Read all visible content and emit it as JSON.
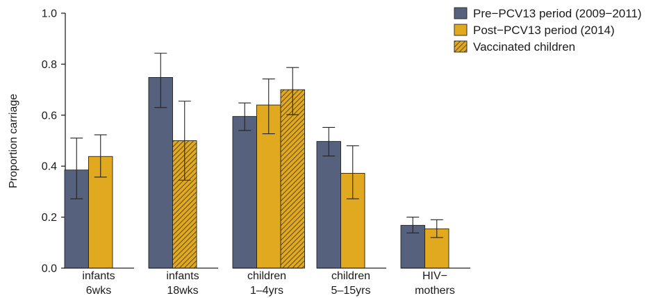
{
  "chart_data": {
    "type": "bar",
    "title": "",
    "xlabel": "",
    "ylabel": "Proportion carriage",
    "ylim": [
      0,
      1.0
    ],
    "yticks": [
      "0.0",
      "0.2",
      "0.4",
      "0.6",
      "0.8",
      "1.0"
    ],
    "grid": false,
    "legend_position": "top-right",
    "categories": [
      {
        "line1": "infants",
        "line2": "6wks"
      },
      {
        "line1": "infants",
        "line2": "18wks"
      },
      {
        "line1": "children",
        "line2": "1–4yrs"
      },
      {
        "line1": "children",
        "line2": "5–15yrs"
      },
      {
        "line1": "HIV−",
        "line2": "mothers"
      }
    ],
    "series": [
      {
        "name": "Pre−PCV13 period (2009−2011)",
        "color": "#56627d",
        "pattern": "solid",
        "values": [
          0.385,
          0.748,
          0.595,
          0.497,
          0.168
        ],
        "ci_low": [
          0.272,
          0.63,
          0.54,
          0.44,
          0.138
        ],
        "ci_high": [
          0.51,
          0.843,
          0.648,
          0.552,
          0.2
        ]
      },
      {
        "name": "Post−PCV13 period (2014)",
        "color": "#e0a91f",
        "pattern": "solid",
        "values": [
          0.438,
          null,
          0.64,
          0.372,
          0.154
        ],
        "ci_low": [
          0.357,
          null,
          0.527,
          0.272,
          0.12
        ],
        "ci_high": [
          0.523,
          null,
          0.742,
          0.48,
          0.19
        ]
      },
      {
        "name": "Vaccinated children",
        "color": "#e0a91f",
        "pattern": "hatched",
        "values": [
          null,
          0.5,
          0.7,
          null,
          null
        ],
        "ci_low": [
          null,
          0.345,
          0.602,
          null,
          null
        ],
        "ci_high": [
          null,
          0.655,
          0.787,
          null,
          null
        ]
      }
    ]
  }
}
